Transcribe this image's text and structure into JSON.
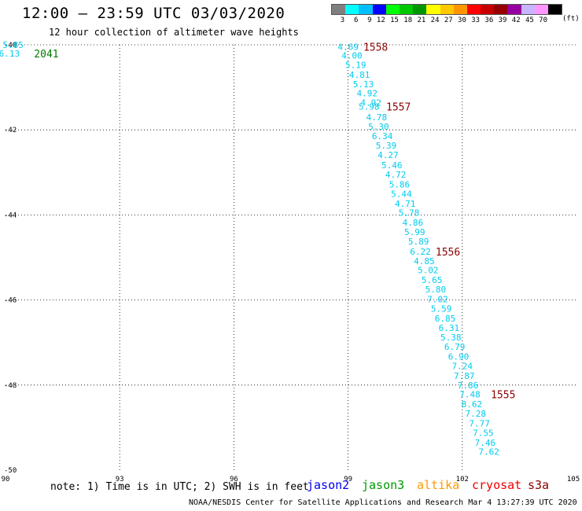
{
  "header": {
    "title": "12:00 – 23:59 UTC 03/03/2020",
    "subtitle": "12 hour collection of altimeter wave heights"
  },
  "legend": {
    "unit_label": "(ft)",
    "bins": [
      {
        "label": "3",
        "color": "#7f7f7f"
      },
      {
        "label": "6",
        "color": "#00ffff"
      },
      {
        "label": "9",
        "color": "#00bfff"
      },
      {
        "label": "12",
        "color": "#0000ff"
      },
      {
        "label": "15",
        "color": "#00ff00"
      },
      {
        "label": "18",
        "color": "#00c800"
      },
      {
        "label": "21",
        "color": "#009600"
      },
      {
        "label": "24",
        "color": "#ffff00"
      },
      {
        "label": "27",
        "color": "#ffc800"
      },
      {
        "label": "30",
        "color": "#ff9600"
      },
      {
        "label": "33",
        "color": "#ff0000"
      },
      {
        "label": "36",
        "color": "#c80000"
      },
      {
        "label": "39",
        "color": "#960000"
      },
      {
        "label": "42",
        "color": "#9600a0"
      },
      {
        "label": "45",
        "color": "#c8b4ff"
      },
      {
        "label": "70",
        "color": "#ff96ff"
      },
      {
        "label": "",
        "color": "#000000"
      }
    ]
  },
  "chart_data": {
    "type": "scatter",
    "xlim": [
      90,
      105
    ],
    "ylim": [
      -50,
      -40
    ],
    "x_ticks": [
      "90",
      "93",
      "96",
      "99",
      "102",
      "105"
    ],
    "y_ticks": [
      "-40",
      "-42",
      "-44",
      "-46",
      "-48",
      "-50"
    ],
    "grid": true,
    "track_color": "#00ccee",
    "swh_points": [
      {
        "lon": 99.0,
        "lat": -40.05,
        "v": "4.69"
      },
      {
        "lon": 99.1,
        "lat": -40.25,
        "v": "4.00"
      },
      {
        "lon": 99.2,
        "lat": -40.47,
        "v": "5.19"
      },
      {
        "lon": 99.3,
        "lat": -40.7,
        "v": "4.81"
      },
      {
        "lon": 99.4,
        "lat": -40.92,
        "v": "5.13"
      },
      {
        "lon": 99.5,
        "lat": -41.14,
        "v": "4.92"
      },
      {
        "lon": 99.6,
        "lat": -41.36,
        "v": "4.92"
      },
      {
        "lon": 99.55,
        "lat": -41.45,
        "v": "5.98"
      },
      {
        "lon": 99.75,
        "lat": -41.7,
        "v": "4.78"
      },
      {
        "lon": 99.8,
        "lat": -41.92,
        "v": "5.30"
      },
      {
        "lon": 99.9,
        "lat": -42.14,
        "v": "6.34"
      },
      {
        "lon": 100.0,
        "lat": -42.37,
        "v": "5.39"
      },
      {
        "lon": 100.05,
        "lat": -42.59,
        "v": "4.27"
      },
      {
        "lon": 100.15,
        "lat": -42.83,
        "v": "5.46"
      },
      {
        "lon": 100.25,
        "lat": -43.05,
        "v": "4.72"
      },
      {
        "lon": 100.35,
        "lat": -43.28,
        "v": "5.86"
      },
      {
        "lon": 100.4,
        "lat": -43.5,
        "v": "5.44"
      },
      {
        "lon": 100.5,
        "lat": -43.73,
        "v": "4.71"
      },
      {
        "lon": 100.6,
        "lat": -43.95,
        "v": "5.78"
      },
      {
        "lon": 100.7,
        "lat": -44.18,
        "v": "4.86"
      },
      {
        "lon": 100.75,
        "lat": -44.4,
        "v": "5.99"
      },
      {
        "lon": 100.85,
        "lat": -44.62,
        "v": "5.89"
      },
      {
        "lon": 100.9,
        "lat": -44.86,
        "v": "6.22"
      },
      {
        "lon": 101.0,
        "lat": -45.08,
        "v": "4.85"
      },
      {
        "lon": 101.1,
        "lat": -45.3,
        "v": "5.02"
      },
      {
        "lon": 101.2,
        "lat": -45.53,
        "v": "5.65"
      },
      {
        "lon": 101.3,
        "lat": -45.75,
        "v": "5.80"
      },
      {
        "lon": 101.35,
        "lat": -45.98,
        "v": "7.02"
      },
      {
        "lon": 101.45,
        "lat": -46.2,
        "v": "5.59"
      },
      {
        "lon": 101.55,
        "lat": -46.43,
        "v": "6.85"
      },
      {
        "lon": 101.65,
        "lat": -46.65,
        "v": "6.31"
      },
      {
        "lon": 101.7,
        "lat": -46.88,
        "v": "5.38"
      },
      {
        "lon": 101.8,
        "lat": -47.1,
        "v": "6.79"
      },
      {
        "lon": 101.9,
        "lat": -47.33,
        "v": "6.90"
      },
      {
        "lon": 102.0,
        "lat": -47.55,
        "v": "7.24"
      },
      {
        "lon": 102.05,
        "lat": -47.78,
        "v": "7.87"
      },
      {
        "lon": 102.15,
        "lat": -48.0,
        "v": "7.86"
      },
      {
        "lon": 102.2,
        "lat": -48.22,
        "v": "7.48"
      },
      {
        "lon": 102.25,
        "lat": -48.45,
        "v": "8.62"
      },
      {
        "lon": 102.35,
        "lat": -48.67,
        "v": "7.28"
      },
      {
        "lon": 102.45,
        "lat": -48.9,
        "v": "7.77"
      },
      {
        "lon": 102.55,
        "lat": -49.12,
        "v": "7.55"
      },
      {
        "lon": 102.6,
        "lat": -49.35,
        "v": "7.46"
      },
      {
        "lon": 102.7,
        "lat": -49.57,
        "v": "7.62"
      },
      {
        "lon": 90.2,
        "lat": -40.0,
        "v": "5.85"
      },
      {
        "lon": 90.1,
        "lat": -40.2,
        "v": "6.13"
      }
    ],
    "time_labels": [
      {
        "lon": 99.4,
        "lat": -40.05,
        "v": "1558",
        "color": "#8b0000"
      },
      {
        "lon": 100.0,
        "lat": -41.45,
        "v": "1557",
        "color": "#8b0000"
      },
      {
        "lon": 101.3,
        "lat": -44.86,
        "v": "1556",
        "color": "#8b0000"
      },
      {
        "lon": 102.75,
        "lat": -48.22,
        "v": "1555",
        "color": "#8b0000"
      },
      {
        "lon": 90.75,
        "lat": -40.2,
        "v": "2041",
        "color": "#007a00"
      }
    ]
  },
  "footer": {
    "note": "note: 1) Time is in UTC; 2) SWH is in feet",
    "satellites": [
      {
        "name": "jason2",
        "color": "#0000ee"
      },
      {
        "name": "jason3",
        "color": "#009900"
      },
      {
        "name": "altika",
        "color": "#ff9900"
      },
      {
        "name": "cryosat",
        "color": "#ee0000"
      },
      {
        "name": "s3a",
        "color": "#8b0000"
      }
    ],
    "credit": "NOAA/NESDIS Center for Satellite Applications and Research    Mar  4 13:27:39 UTC 2020"
  }
}
